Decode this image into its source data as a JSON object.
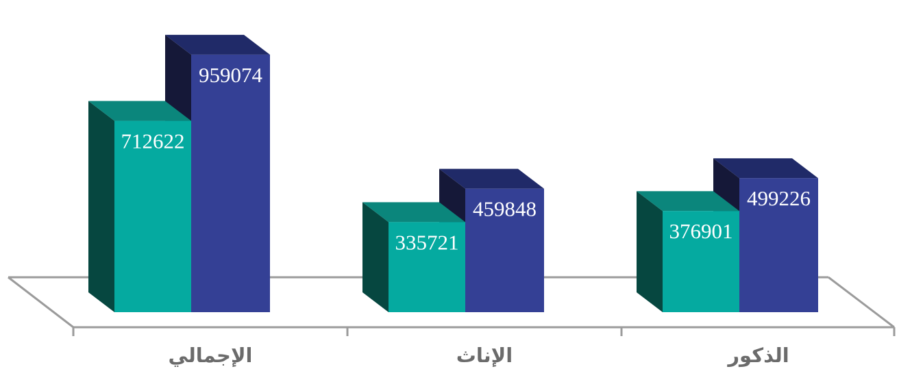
{
  "chart_data": {
    "type": "bar",
    "projection": "3d",
    "direction": "rtl",
    "title": "",
    "xlabel": "",
    "ylabel": "",
    "grid": false,
    "legend": "none",
    "background": "#FFFFFF",
    "axis_color": "#9B9B9B",
    "category_label_color": "#6B6B6B",
    "value_label_color": "#FFFFFF",
    "categories": [
      "الإجمالي",
      "الإناث",
      "الذكور"
    ],
    "series": [
      {
        "name": "teal",
        "color_front": "#05AAA0",
        "color_top": "#0B867C",
        "color_side": "#064740",
        "values": [
          712622,
          335721,
          376901
        ]
      },
      {
        "name": "blue",
        "color_front": "#344095",
        "color_top": "#202A68",
        "color_side": "#151838",
        "values": [
          959074,
          459848,
          499226
        ]
      }
    ],
    "value_labels_visible": true
  }
}
